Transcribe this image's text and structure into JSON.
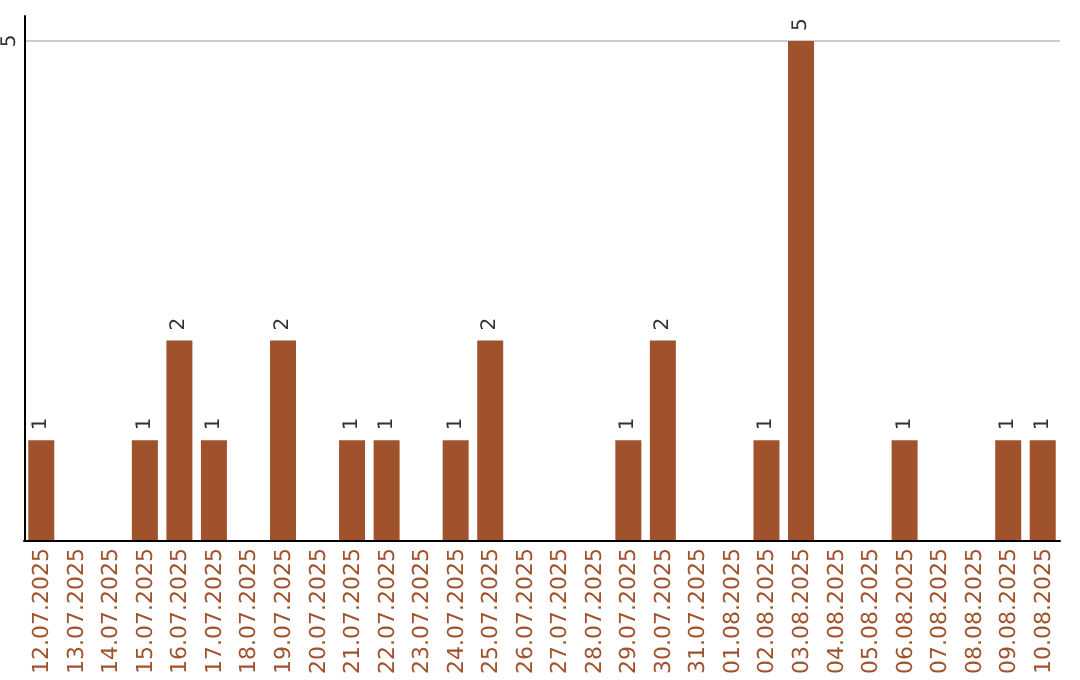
{
  "chart_data": {
    "type": "bar",
    "categories": [
      "12.07.2025",
      "13.07.2025",
      "14.07.2025",
      "15.07.2025",
      "16.07.2025",
      "17.07.2025",
      "18.07.2025",
      "19.07.2025",
      "20.07.2025",
      "21.07.2025",
      "22.07.2025",
      "23.07.2025",
      "24.07.2025",
      "25.07.2025",
      "26.07.2025",
      "27.07.2025",
      "28.07.2025",
      "29.07.2025",
      "30.07.2025",
      "31.07.2025",
      "01.08.2025",
      "02.08.2025",
      "03.08.2025",
      "04.08.2025",
      "05.08.2025",
      "06.08.2025",
      "07.08.2025",
      "08.08.2025",
      "09.08.2025",
      "10.08.2025"
    ],
    "values": [
      1,
      0,
      0,
      1,
      2,
      1,
      0,
      2,
      0,
      1,
      1,
      0,
      1,
      2,
      0,
      0,
      0,
      1,
      2,
      0,
      0,
      1,
      5,
      0,
      0,
      1,
      0,
      0,
      1,
      1
    ],
    "value_labels": [
      "1",
      null,
      null,
      "1",
      "2",
      "1",
      null,
      "2",
      null,
      "1",
      "1",
      null,
      "1",
      "2",
      null,
      null,
      null,
      "1",
      "2",
      null,
      null,
      "1",
      "5",
      null,
      null,
      "1",
      null,
      null,
      "1",
      "1"
    ],
    "color": "#a0522d",
    "ylim": [
      0,
      5.25
    ],
    "yticks": [
      5
    ],
    "grid": "y"
  }
}
